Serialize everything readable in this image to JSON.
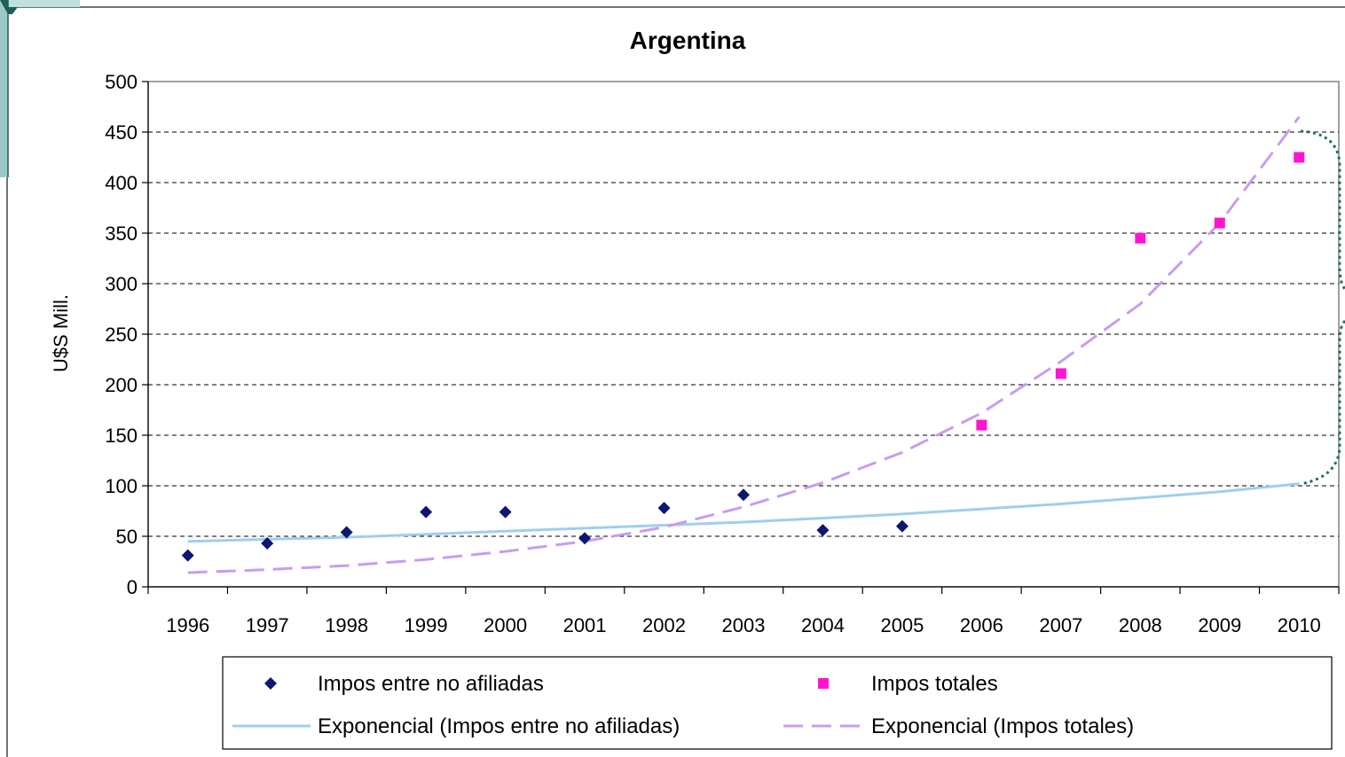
{
  "chart_data": {
    "type": "scatter",
    "title": "Argentina",
    "ylabel": "U$S Mill.",
    "xlabel": "",
    "ylim": [
      0,
      500
    ],
    "yticks": [
      0,
      50,
      100,
      150,
      200,
      250,
      300,
      350,
      400,
      450,
      500
    ],
    "categories": [
      "1996",
      "1997",
      "1998",
      "1999",
      "2000",
      "2001",
      "2002",
      "2003",
      "2004",
      "2005",
      "2006",
      "2007",
      "2008",
      "2009",
      "2010"
    ],
    "grid": "horizontal dashed",
    "legend_position": "bottom",
    "series": [
      {
        "name": "Impos entre no afiliadas",
        "kind": "marker",
        "marker": "diamond",
        "color": "#0d1670",
        "x": [
          "1996",
          "1997",
          "1998",
          "1999",
          "2000",
          "2001",
          "2002",
          "2003",
          "2004",
          "2005"
        ],
        "values": [
          31,
          43,
          54,
          74,
          74,
          48,
          78,
          91,
          56,
          60
        ]
      },
      {
        "name": "Impos totales",
        "kind": "marker",
        "marker": "square",
        "color": "#ff14d2",
        "x": [
          "2006",
          "2007",
          "2008",
          "2009",
          "2010"
        ],
        "values": [
          160,
          211,
          345,
          360,
          425
        ]
      },
      {
        "name": "Exponencial (Impos entre no afiliadas)",
        "kind": "trendline",
        "style": "solid",
        "color": "#9ecfee",
        "x": [
          "1996",
          "1997",
          "1998",
          "1999",
          "2000",
          "2001",
          "2002",
          "2003",
          "2004",
          "2005",
          "2006",
          "2007",
          "2008",
          "2009",
          "2010"
        ],
        "values": [
          45,
          47,
          49,
          52,
          55,
          58,
          61,
          64,
          68,
          72,
          77,
          82,
          88,
          94,
          102
        ]
      },
      {
        "name": "Exponencial (Impos totales)",
        "kind": "trendline",
        "style": "dashed",
        "color": "#c89cf0",
        "x": [
          "1996",
          "1997",
          "1998",
          "1999",
          "2000",
          "2001",
          "2002",
          "2003",
          "2004",
          "2005",
          "2006",
          "2007",
          "2008",
          "2009",
          "2010"
        ],
        "values": [
          14,
          17,
          21,
          27,
          35,
          45,
          59,
          79,
          103,
          133,
          172,
          223,
          280,
          360,
          465
        ]
      }
    ],
    "colors": {
      "gridline": "#000000",
      "plot_border": "#808080",
      "bracket": "#1f6b66",
      "corner_accent": "#2f8f8a"
    }
  }
}
